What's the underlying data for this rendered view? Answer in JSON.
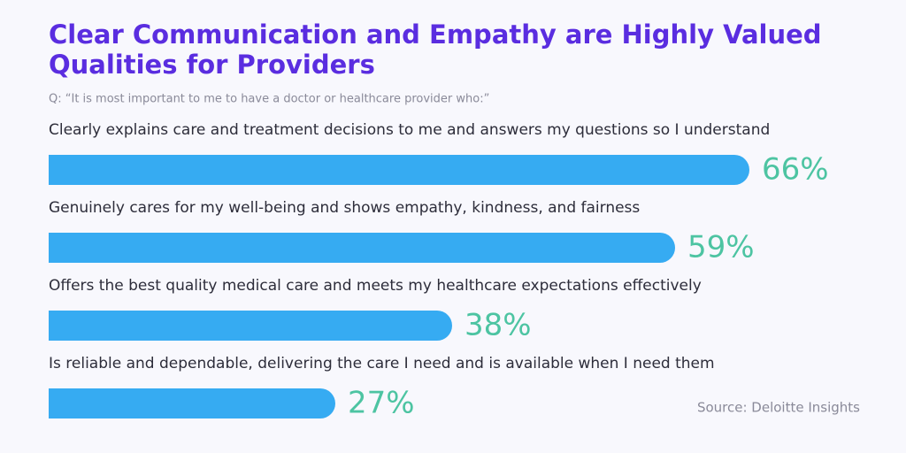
{
  "chart_data": {
    "type": "bar",
    "orientation": "horizontal",
    "title": "Clear Communication and Empathy are Highly Valued Qualities for Providers",
    "subtitle": "Q: “It is most important to me to have a doctor or healthcare provider who:”",
    "categories": [
      "Clearly explains care and treatment decisions to me and answers my questions so I understand",
      "Genuinely cares for my well-being and shows empathy, kindness, and fairness",
      "Offers the best quality medical care and meets my healthcare expectations effectively",
      "Is reliable and dependable, delivering the care I need and is available when I need them"
    ],
    "values": [
      66,
      59,
      38,
      27
    ],
    "value_labels": [
      "66%",
      "59%",
      "38%",
      "27%"
    ],
    "color": "#36abf2",
    "value_label_color": "#4dc4a2",
    "source": "Source: Deloitte Insights"
  }
}
